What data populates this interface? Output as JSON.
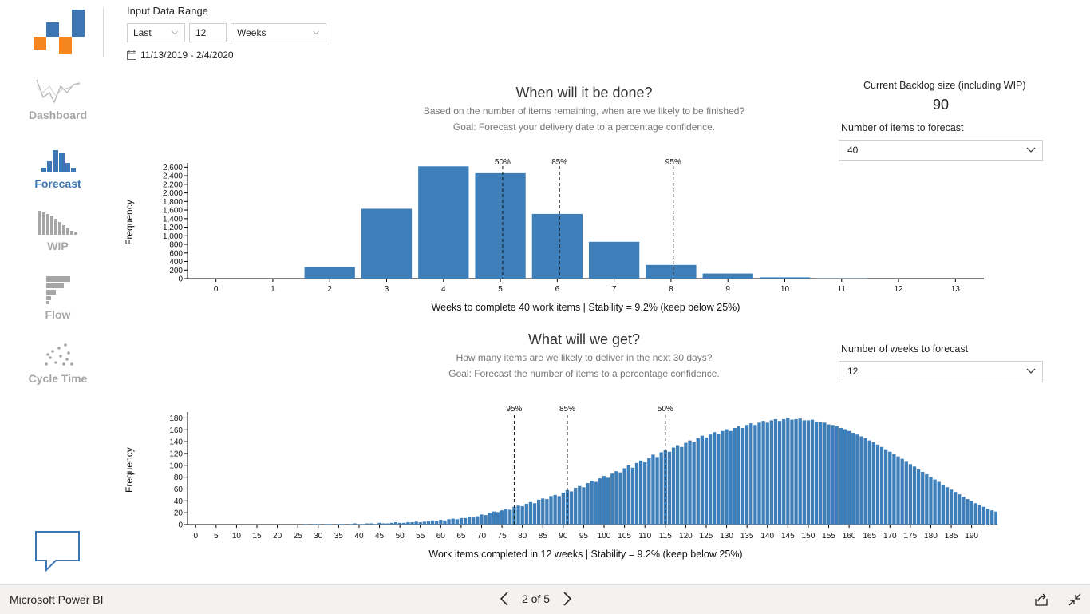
{
  "nav": {
    "items": [
      {
        "label": "Dashboard"
      },
      {
        "label": "Forecast"
      },
      {
        "label": "WIP"
      },
      {
        "label": "Flow"
      },
      {
        "label": "Cycle Time"
      }
    ]
  },
  "filters": {
    "title": "Input Data Range",
    "mode": "Last",
    "count": "12",
    "unit": "Weeks",
    "date_range": "11/13/2019 - 2/4/2020"
  },
  "forecast1": {
    "title": "When will it be done?",
    "subtitle1": "Based on the number of items remaining, when are we likely to be finished?",
    "subtitle2": "Goal: Forecast your delivery date to a percentage confidence.",
    "backlog_label": "Current Backlog size (including WIP)",
    "backlog_value": "90",
    "items_label": "Number of items to forecast",
    "items_value": "40"
  },
  "forecast2": {
    "title": "What will we get?",
    "subtitle1": "How many items are we likely to deliver in the next 30 days?",
    "subtitle2": "Goal: Forecast the number of items to a percentage confidence.",
    "weeks_label": "Number of weeks to forecast",
    "weeks_value": "12"
  },
  "chart_data": [
    {
      "type": "bar",
      "ylabel": "Frequency",
      "xlabel": "Weeks to complete 40 work items | Stability = 9.2% (keep below 25%)",
      "x": [
        0,
        1,
        2,
        3,
        4,
        5,
        6,
        7,
        8,
        9,
        10,
        11,
        12,
        13
      ],
      "values": [
        0,
        0,
        270,
        1630,
        2620,
        2460,
        1510,
        860,
        320,
        120,
        30,
        5,
        0,
        0
      ],
      "yticks": [
        0,
        200,
        400,
        600,
        800,
        1000,
        1200,
        1400,
        1600,
        1800,
        2000,
        2200,
        2400,
        2600
      ],
      "ytick_labels": [
        "0",
        "200",
        "400",
        "600",
        "800",
        "1,000",
        "1,200",
        "1,400",
        "1,600",
        "1,800",
        "2,000",
        "2,200",
        "2,400",
        "2,600"
      ],
      "ylim": [
        0,
        2700
      ],
      "percentiles": [
        {
          "label": "50%",
          "x": 5.04
        },
        {
          "label": "85%",
          "x": 6.04
        },
        {
          "label": "95%",
          "x": 8.04
        }
      ]
    },
    {
      "type": "bar",
      "ylabel": "Frequency",
      "xlabel": "Work items completed in 12 weeks | Stability = 9.2% (keep below 25%)",
      "xticks": [
        0,
        5,
        10,
        15,
        20,
        25,
        30,
        35,
        40,
        45,
        50,
        55,
        60,
        65,
        70,
        75,
        80,
        85,
        90,
        95,
        100,
        105,
        110,
        115,
        120,
        125,
        130,
        135,
        140,
        145,
        150,
        155,
        160,
        165,
        170,
        175,
        180,
        185,
        190
      ],
      "yticks": [
        0,
        20,
        40,
        60,
        80,
        100,
        120,
        140,
        160,
        180
      ],
      "ylim": [
        0,
        190
      ],
      "xlim": [
        -2,
        193
      ],
      "x_start": 27,
      "values": [
        1,
        0,
        1,
        1,
        0,
        1,
        1,
        0,
        1,
        1,
        0,
        1,
        2,
        1,
        1,
        2,
        2,
        1,
        3,
        2,
        2,
        3,
        4,
        3,
        3,
        4,
        4,
        5,
        4,
        5,
        6,
        7,
        6,
        8,
        7,
        9,
        10,
        9,
        11,
        11,
        13,
        12,
        14,
        17,
        16,
        20,
        22,
        21,
        24,
        26,
        25,
        30,
        32,
        31,
        35,
        38,
        36,
        42,
        44,
        43,
        48,
        50,
        48,
        54,
        58,
        56,
        62,
        65,
        63,
        70,
        74,
        72,
        78,
        82,
        79,
        86,
        90,
        88,
        95,
        100,
        96,
        104,
        108,
        105,
        112,
        118,
        114,
        122,
        126,
        123,
        130,
        134,
        131,
        138,
        142,
        139,
        146,
        150,
        147,
        152,
        156,
        153,
        158,
        161,
        158,
        163,
        166,
        163,
        168,
        171,
        168,
        172,
        175,
        172,
        176,
        178,
        175,
        178,
        180,
        177,
        178,
        179,
        176,
        176,
        177,
        174,
        173,
        172,
        169,
        168,
        166,
        163,
        161,
        158,
        155,
        152,
        149,
        146,
        142,
        139,
        135,
        131,
        127,
        123,
        119,
        115,
        111,
        106,
        102,
        98,
        93,
        89,
        85,
        80,
        76,
        72,
        67,
        63,
        59,
        55,
        51,
        47,
        43,
        40,
        36,
        33,
        30,
        27,
        24,
        22,
        19,
        17,
        15,
        13,
        11,
        10,
        8,
        7,
        6,
        5,
        4,
        4,
        3,
        2,
        2,
        1,
        1,
        1,
        1,
        0,
        1
      ],
      "percentiles": [
        {
          "label": "95%",
          "x": 78
        },
        {
          "label": "85%",
          "x": 91
        },
        {
          "label": "50%",
          "x": 115
        }
      ]
    }
  ],
  "bottom": {
    "brand": "Microsoft Power BI",
    "page": "2 of 5"
  }
}
